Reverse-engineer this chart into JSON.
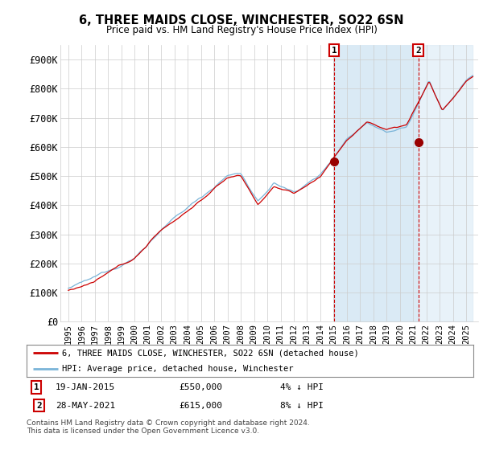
{
  "title": "6, THREE MAIDS CLOSE, WINCHESTER, SO22 6SN",
  "subtitle": "Price paid vs. HM Land Registry's House Price Index (HPI)",
  "hpi_color": "#7ab4d8",
  "hpi_fill_color": "#daeaf5",
  "price_color": "#cc0000",
  "marker_color": "#990000",
  "vline_color": "#cc0000",
  "ylim": [
    0,
    950000
  ],
  "yticks": [
    0,
    100000,
    200000,
    300000,
    400000,
    500000,
    600000,
    700000,
    800000,
    900000
  ],
  "ytick_labels": [
    "£0",
    "£100K",
    "£200K",
    "£300K",
    "£400K",
    "£500K",
    "£600K",
    "£700K",
    "£800K",
    "£900K"
  ],
  "legend_label_price": "6, THREE MAIDS CLOSE, WINCHESTER, SO22 6SN (detached house)",
  "legend_label_hpi": "HPI: Average price, detached house, Winchester",
  "sale1_year": 2015.05,
  "sale1_price": 550000,
  "sale2_year": 2021.38,
  "sale2_price": 615000,
  "annotation1_label": "1",
  "annotation1_date": "19-JAN-2015",
  "annotation1_price": "£550,000",
  "annotation1_hpi": "4% ↓ HPI",
  "annotation2_label": "2",
  "annotation2_date": "28-MAY-2021",
  "annotation2_price": "£615,000",
  "annotation2_hpi": "8% ↓ HPI",
  "footer": "Contains HM Land Registry data © Crown copyright and database right 2024.\nThis data is licensed under the Open Government Licence v3.0.",
  "background_color": "#ffffff",
  "grid_color": "#cccccc"
}
